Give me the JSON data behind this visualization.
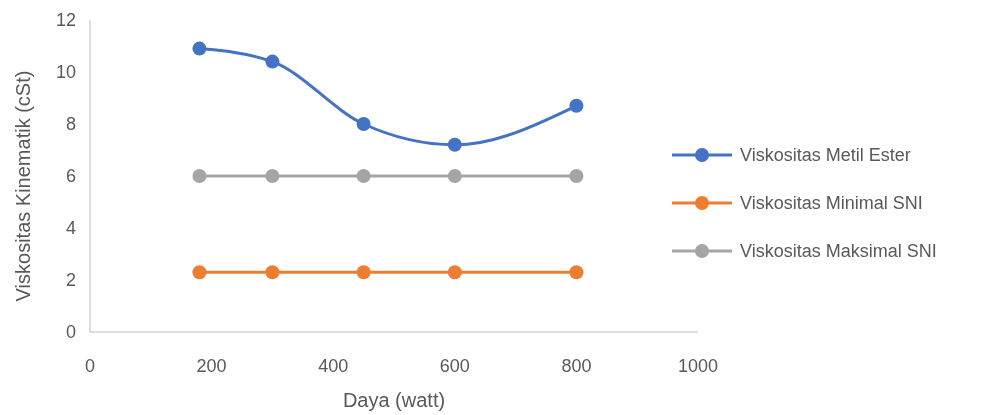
{
  "chart_data": {
    "type": "line",
    "xlabel": "Daya (watt)",
    "ylabel": "Viskositas Kinematik (cSt)",
    "x": [
      180,
      300,
      450,
      600,
      800
    ],
    "series": [
      {
        "name": "Viskositas Metil Ester",
        "color": "#4472c4",
        "values": [
          10.9,
          10.4,
          8.0,
          7.2,
          8.7
        ]
      },
      {
        "name": "Viskositas Minimal SNI",
        "color": "#ed7d31",
        "values": [
          2.3,
          2.3,
          2.3,
          2.3,
          2.3
        ]
      },
      {
        "name": "Viskositas Maksimal SNI",
        "color": "#a5a5a5",
        "values": [
          6,
          6,
          6,
          6,
          6
        ]
      }
    ],
    "xlim": [
      0,
      1000
    ],
    "xticks": [
      0,
      200,
      400,
      600,
      800,
      1000
    ],
    "ylim": [
      0,
      12
    ],
    "yticks": [
      0,
      2,
      4,
      6,
      8,
      10,
      12
    ],
    "grid": false,
    "legend": "right",
    "marker": "circle",
    "line_style": "solid"
  }
}
